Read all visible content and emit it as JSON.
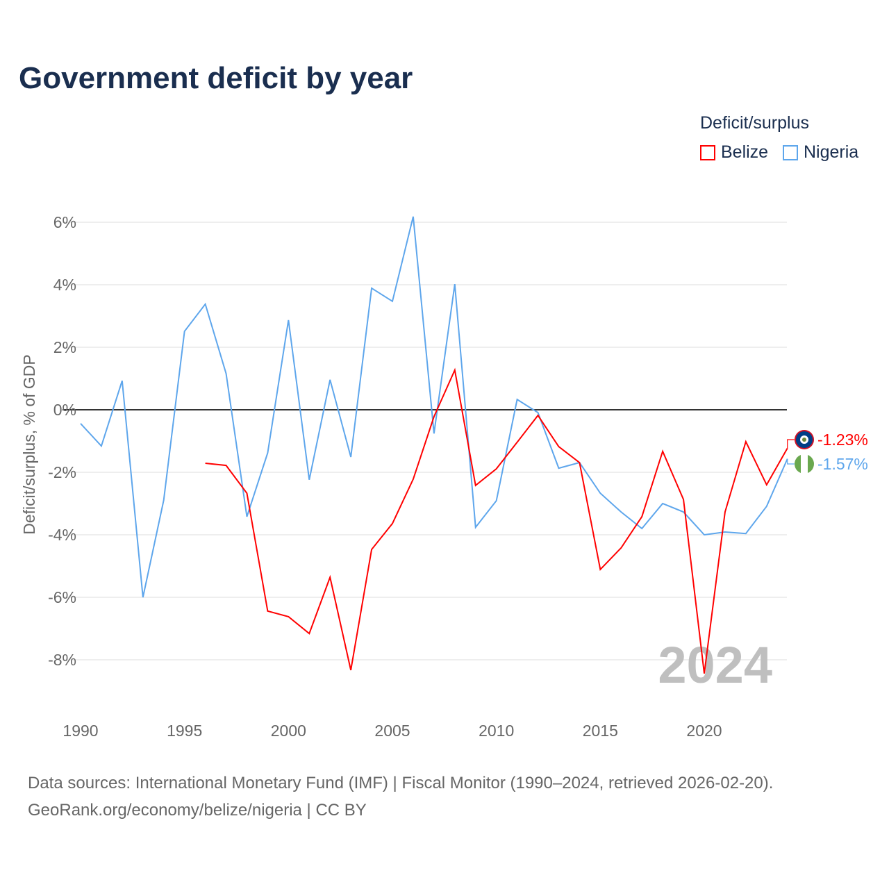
{
  "title": "Government deficit by year",
  "legend": {
    "title": "Deficit/surplus",
    "items": [
      {
        "label": "Belize",
        "color": "#ff0000"
      },
      {
        "label": "Nigeria",
        "color": "#5ea6ec"
      }
    ]
  },
  "source": {
    "line1": "Data sources: International Monetary Fund (IMF) | Fiscal Monitor (1990–2024, retrieved 2026-02-20).",
    "line2": "GeoRank.org/economy/belize/nigeria | CC BY"
  },
  "watermark_year": "2024",
  "chart_data": {
    "type": "line",
    "title": "Government deficit by year",
    "xlabel": "",
    "ylabel": "Deficit/surplus, % of GDP",
    "xlim": [
      1990,
      2024
    ],
    "ylim": [
      -9.5,
      6.5
    ],
    "x_ticks": [
      1990,
      1995,
      2000,
      2005,
      2010,
      2015,
      2020
    ],
    "x_tick_labels": [
      "1990",
      "1995",
      "2000",
      "2005",
      "2010",
      "2015",
      "2020"
    ],
    "y_ticks": [
      -8,
      -6,
      -4,
      -2,
      0,
      2,
      4,
      6
    ],
    "y_tick_labels": [
      "-8%",
      "-6%",
      "-4%",
      "-2%",
      "0%",
      "2%",
      "4%",
      "6%"
    ],
    "grid": true,
    "legend_position": "top-right",
    "series": [
      {
        "name": "Belize",
        "color": "#ff0000",
        "end_label": "-1.23%",
        "x": [
          1996,
          1997,
          1998,
          1999,
          2000,
          2001,
          2002,
          2003,
          2004,
          2005,
          2006,
          2007,
          2008,
          2009,
          2010,
          2011,
          2012,
          2013,
          2014,
          2015,
          2016,
          2017,
          2018,
          2019,
          2020,
          2021,
          2022,
          2023,
          2024
        ],
        "values": [
          -1.71,
          -1.78,
          -2.67,
          -6.44,
          -6.62,
          -7.16,
          -5.36,
          -8.33,
          -4.47,
          -3.64,
          -2.22,
          -0.22,
          1.27,
          -2.42,
          -1.89,
          -1.04,
          -0.18,
          -1.18,
          -1.69,
          -5.11,
          -4.42,
          -3.42,
          -1.33,
          -2.87,
          -8.44,
          -3.27,
          -1.02,
          -2.4,
          -1.23
        ]
      },
      {
        "name": "Nigeria",
        "color": "#5ea6ec",
        "end_label": "-1.57%",
        "x": [
          1990,
          1991,
          1992,
          1993,
          1994,
          1995,
          1996,
          1997,
          1998,
          1999,
          2000,
          2001,
          2002,
          2003,
          2004,
          2005,
          2006,
          2007,
          2008,
          2009,
          2010,
          2011,
          2012,
          2013,
          2014,
          2015,
          2016,
          2017,
          2018,
          2019,
          2020,
          2021,
          2022,
          2023,
          2024
        ],
        "values": [
          -0.44,
          -1.16,
          0.93,
          -6.0,
          -2.89,
          2.51,
          3.38,
          1.16,
          -3.42,
          -1.38,
          2.87,
          -2.24,
          0.96,
          -1.51,
          3.89,
          3.47,
          6.18,
          -0.76,
          4.02,
          -3.76,
          -2.91,
          0.33,
          -0.09,
          -1.87,
          -1.69,
          -2.67,
          -3.27,
          -3.8,
          -3.0,
          -3.27,
          -4.0,
          -3.91,
          -3.96,
          -3.09,
          -1.57
        ]
      }
    ]
  }
}
